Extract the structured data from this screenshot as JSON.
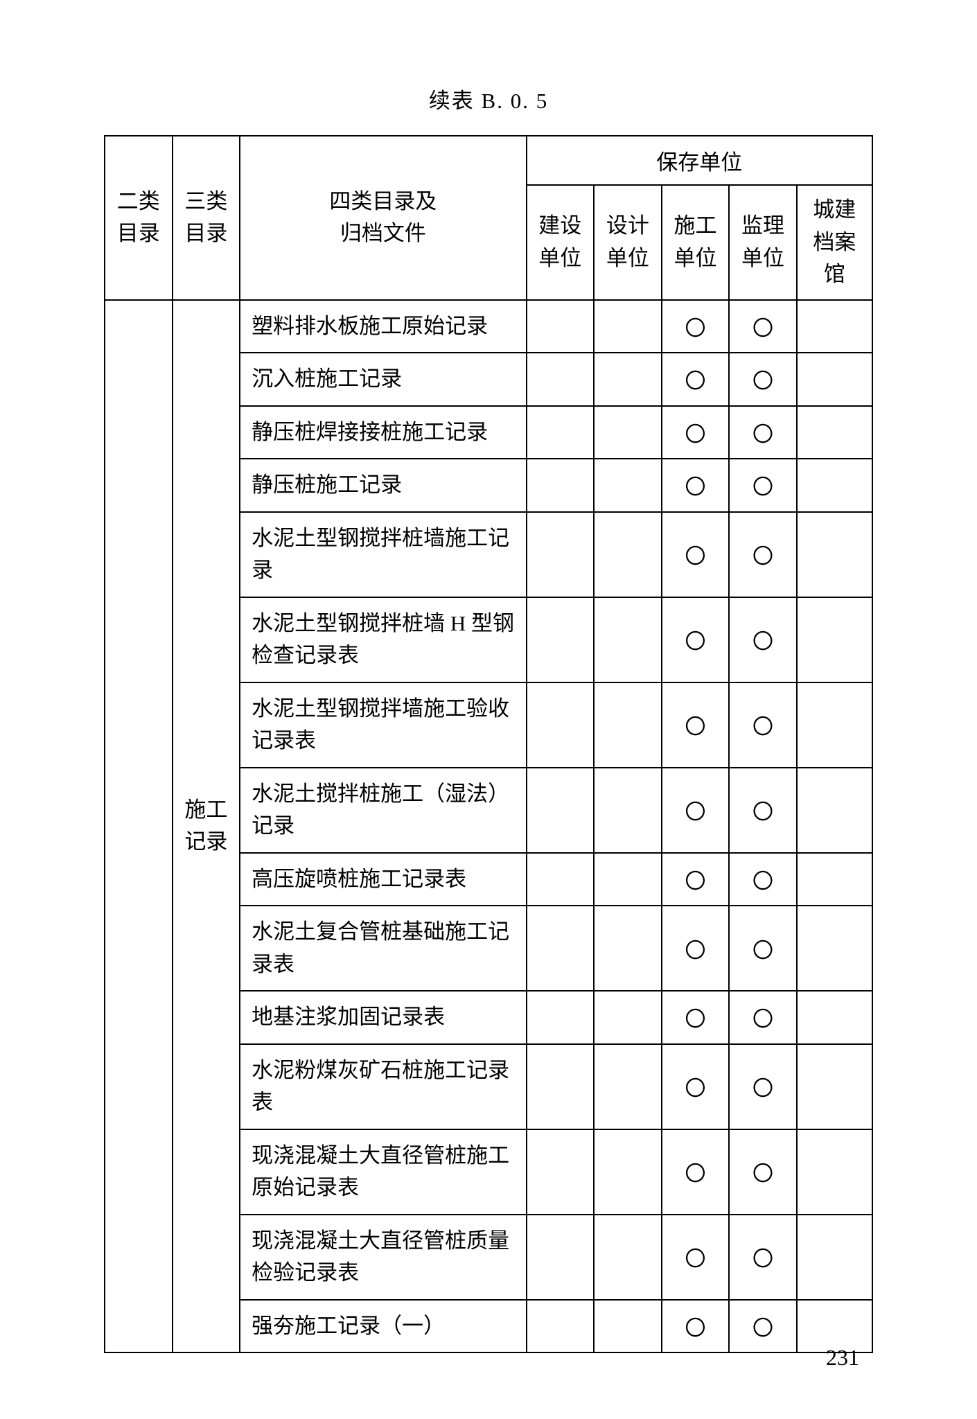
{
  "title": "续表 B. 0. 5",
  "page_number": "231",
  "circle_mark": "〇",
  "header": {
    "col_a": "二类目录",
    "col_b": "三类目录",
    "col_c_line1": "四类目录及",
    "col_c_line2": "归档文件",
    "group": "保存单位",
    "sub1_l1": "建设",
    "sub1_l2": "单位",
    "sub2_l1": "设计",
    "sub2_l2": "单位",
    "sub3_l1": "施工",
    "sub3_l2": "单位",
    "sub4_l1": "监理",
    "sub4_l2": "单位",
    "sub5_l1": "城建",
    "sub5_l2": "档案",
    "sub5_l3": "馆"
  },
  "rowgroup_label": "施工记录",
  "rows": [
    {
      "text": "塑料排水板施工原始记录",
      "m": [
        "",
        "",
        "〇",
        "〇",
        ""
      ]
    },
    {
      "text": "沉入桩施工记录",
      "m": [
        "",
        "",
        "〇",
        "〇",
        ""
      ]
    },
    {
      "text": "静压桩焊接接桩施工记录",
      "m": [
        "",
        "",
        "〇",
        "〇",
        ""
      ]
    },
    {
      "text": "静压桩施工记录",
      "m": [
        "",
        "",
        "〇",
        "〇",
        ""
      ]
    },
    {
      "text": "水泥土型钢搅拌桩墙施工记录",
      "m": [
        "",
        "",
        "〇",
        "〇",
        ""
      ]
    },
    {
      "text": "水泥土型钢搅拌桩墙 H 型钢检查记录表",
      "m": [
        "",
        "",
        "〇",
        "〇",
        ""
      ]
    },
    {
      "text": "水泥土型钢搅拌墙施工验收记录表",
      "m": [
        "",
        "",
        "〇",
        "〇",
        ""
      ]
    },
    {
      "text": "水泥土搅拌桩施工（湿法）记录",
      "m": [
        "",
        "",
        "〇",
        "〇",
        ""
      ]
    },
    {
      "text": "高压旋喷桩施工记录表",
      "m": [
        "",
        "",
        "〇",
        "〇",
        ""
      ]
    },
    {
      "text": "水泥土复合管桩基础施工记录表",
      "m": [
        "",
        "",
        "〇",
        "〇",
        ""
      ]
    },
    {
      "text": "地基注浆加固记录表",
      "m": [
        "",
        "",
        "〇",
        "〇",
        ""
      ]
    },
    {
      "text": "水泥粉煤灰矿石桩施工记录表",
      "m": [
        "",
        "",
        "〇",
        "〇",
        ""
      ]
    },
    {
      "text": "现浇混凝土大直径管桩施工原始记录表",
      "m": [
        "",
        "",
        "〇",
        "〇",
        ""
      ]
    },
    {
      "text": "现浇混凝土大直径管桩质量检验记录表",
      "m": [
        "",
        "",
        "〇",
        "〇",
        ""
      ]
    },
    {
      "text": "强夯施工记录（一）",
      "m": [
        "",
        "",
        "〇",
        "〇",
        ""
      ]
    }
  ]
}
